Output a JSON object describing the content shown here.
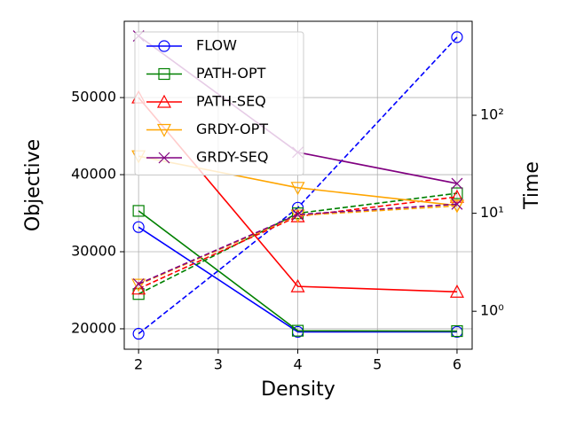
{
  "chart_data": {
    "type": "line",
    "x_label": "Density",
    "y_label": "Objective",
    "y2_label": "Time",
    "x": [
      2,
      4,
      6
    ],
    "xlim": [
      1.82,
      6.19
    ],
    "xticks": [
      2,
      3,
      4,
      5,
      6
    ],
    "ylim": [
      17350,
      59900
    ],
    "yticks": [
      20000,
      30000,
      40000,
      50000
    ],
    "y2lim": [
      0.41,
      910
    ],
    "y2_log_scale": true,
    "y2ticks": [
      {
        "value": 1,
        "label": "10⁰"
      },
      {
        "value": 10,
        "label": "10¹"
      },
      {
        "value": 100,
        "label": "10²"
      }
    ],
    "grid": true,
    "legend_position": "upper-left",
    "series": [
      {
        "name": "FLOW",
        "color": "#0000ff",
        "marker": "circle",
        "values": [
          33200,
          19600,
          19600
        ],
        "y2_values": [
          0.59,
          11.4,
          627
        ]
      },
      {
        "name": "PATH-OPT",
        "color": "#008000",
        "marker": "square",
        "values": [
          35300,
          19750,
          19700
        ],
        "y2_values": [
          1.5,
          10,
          16
        ]
      },
      {
        "name": "PATH-SEQ",
        "color": "#ff0000",
        "marker": "triangle-up",
        "values": [
          50000,
          25500,
          24800
        ],
        "y2_values": [
          1.7,
          9.3,
          14.7
        ]
      },
      {
        "name": "GRDY-OPT",
        "color": "#ffa500",
        "marker": "triangle-down",
        "values": [
          42400,
          38300,
          36000
        ],
        "y2_values": [
          1.87,
          9.5,
          11.9
        ]
      },
      {
        "name": "GRDY-SEQ",
        "color": "#800080",
        "marker": "x",
        "values": [
          58000,
          42900,
          38850
        ],
        "y2_values": [
          1.9,
          9.7,
          12.4
        ]
      }
    ]
  }
}
